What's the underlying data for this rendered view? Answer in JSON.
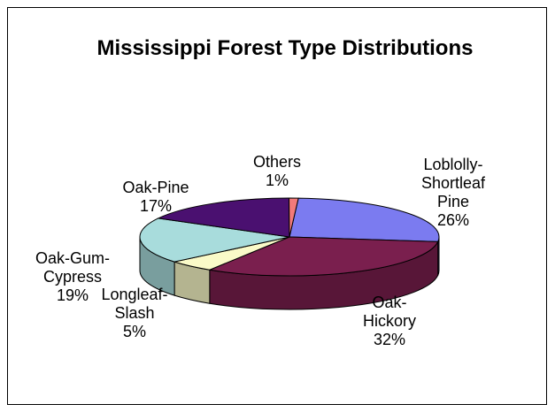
{
  "chart_data": {
    "type": "pie",
    "title": "Mississippi Forest Type Distributions",
    "slices": [
      {
        "label_lines": [
          "Loblolly-",
          "Shortleaf",
          "Pine"
        ],
        "value": 26,
        "value_label": "26%",
        "color": "#7b7bf0"
      },
      {
        "label_lines": [
          "Oak-",
          "Hickory"
        ],
        "value": 32,
        "value_label": "32%",
        "color": "#7a1f4e"
      },
      {
        "label_lines": [
          "Longleaf-",
          "Slash"
        ],
        "value": 5,
        "value_label": "5%",
        "color": "#fafac8"
      },
      {
        "label_lines": [
          "Oak-Gum-",
          "Cypress"
        ],
        "value": 19,
        "value_label": "19%",
        "color": "#a8dcdc"
      },
      {
        "label_lines": [
          "Oak-Pine"
        ],
        "value": 17,
        "value_label": "17%",
        "color": "#4a1070"
      },
      {
        "label_lines": [
          "Others"
        ],
        "value": 1,
        "value_label": "1%",
        "color": "#f27a7a"
      }
    ],
    "three_d": true,
    "legend": "none"
  }
}
